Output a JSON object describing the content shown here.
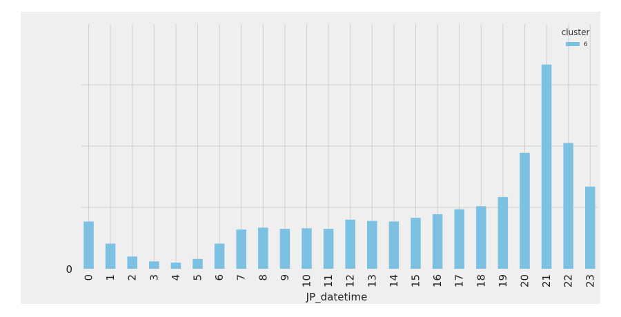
{
  "chart_data": {
    "type": "bar",
    "xlabel": "JP_datetime",
    "ylabel": "",
    "categories": [
      "0",
      "1",
      "2",
      "3",
      "4",
      "5",
      "6",
      "7",
      "8",
      "9",
      "10",
      "11",
      "12",
      "13",
      "14",
      "15",
      "16",
      "17",
      "18",
      "19",
      "20",
      "21",
      "22",
      "23"
    ],
    "series": [
      {
        "name": "6",
        "values": [
          77,
          41,
          20,
          12,
          10,
          16,
          41,
          64,
          67,
          65,
          66,
          65,
          80,
          78,
          77,
          83,
          89,
          97,
          102,
          117,
          189,
          333,
          205,
          134
        ],
        "color": "#7cc0e2"
      }
    ],
    "ylim": [
      0,
      400
    ],
    "yticks": [
      0,
      100,
      200,
      300
    ],
    "ytick_labels": [
      "0",
      "",
      "",
      ""
    ],
    "grid": true,
    "legend": {
      "title": "cluster",
      "position": "top-right"
    }
  },
  "colors": {
    "plot_background": "#efefef",
    "grid": "#cfcfcf",
    "bar": "#7cc0e2"
  }
}
